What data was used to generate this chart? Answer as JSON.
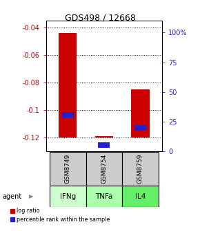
{
  "title": "GDS498 / 12668",
  "samples": [
    "GSM8749",
    "GSM8754",
    "GSM8759"
  ],
  "agents": [
    "IFNg",
    "TNFa",
    "IL4"
  ],
  "log_ratios": [
    -0.044,
    -0.119,
    -0.085
  ],
  "bar_bottom": -0.12,
  "percentile_ranks": [
    28,
    5,
    18
  ],
  "ylim_left": [
    -0.13,
    -0.035
  ],
  "ylim_right": [
    0,
    110
  ],
  "yticks_left": [
    -0.12,
    -0.1,
    -0.08,
    -0.06,
    -0.04
  ],
  "yticks_right": [
    0,
    25,
    50,
    75,
    100
  ],
  "ytick_labels_left": [
    "-0.12",
    "-0.1",
    "-0.08",
    "-0.06",
    "-0.04"
  ],
  "ytick_labels_right": [
    "0",
    "25",
    "50",
    "75",
    "100%"
  ],
  "bar_color": "#cc0000",
  "percentile_color": "#2222cc",
  "sample_box_color": "#cccccc",
  "agent_colors": [
    "#ccffcc",
    "#aaffaa",
    "#66ee66"
  ],
  "bar_width": 0.5,
  "legend_log_ratio": "log ratio",
  "legend_percentile": "percentile rank within the sample",
  "left_tick_color": "#cc0000",
  "right_tick_color": "#2222cc",
  "agent_label": "agent"
}
